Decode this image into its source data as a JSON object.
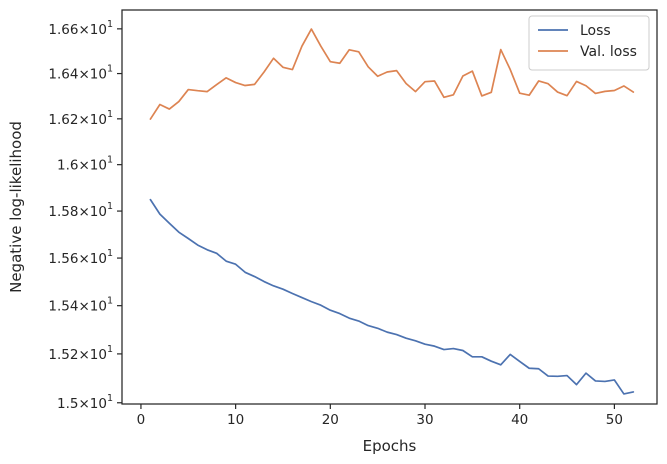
{
  "chart_data": {
    "type": "line",
    "xlabel": "Epochs",
    "ylabel": "Negative log-likelihood",
    "xlim": [
      -2,
      54.5
    ],
    "ylim": [
      14.995,
      16.685
    ],
    "yscale": "log",
    "grid": false,
    "legend_position": "top-right",
    "x_ticks": [
      0,
      10,
      20,
      30,
      40,
      50
    ],
    "y_ticks": [
      {
        "value": 15.0,
        "mantissa": "1.5",
        "base": "10",
        "exponent": "1"
      },
      {
        "value": 15.2,
        "mantissa": "1.52",
        "base": "10",
        "exponent": "1"
      },
      {
        "value": 15.4,
        "mantissa": "1.54",
        "base": "10",
        "exponent": "1"
      },
      {
        "value": 15.6,
        "mantissa": "1.56",
        "base": "10",
        "exponent": "1"
      },
      {
        "value": 15.8,
        "mantissa": "1.58",
        "base": "10",
        "exponent": "1"
      },
      {
        "value": 16.0,
        "mantissa": "1.6",
        "base": "10",
        "exponent": "1"
      },
      {
        "value": 16.2,
        "mantissa": "1.62",
        "base": "10",
        "exponent": "1"
      },
      {
        "value": 16.4,
        "mantissa": "1.64",
        "base": "10",
        "exponent": "1"
      },
      {
        "value": 16.6,
        "mantissa": "1.66",
        "base": "10",
        "exponent": "1"
      }
    ],
    "x": [
      1,
      2,
      3,
      4,
      5,
      6,
      7,
      8,
      9,
      10,
      11,
      12,
      13,
      14,
      15,
      16,
      17,
      18,
      19,
      20,
      21,
      22,
      23,
      24,
      25,
      26,
      27,
      28,
      29,
      30,
      31,
      32,
      33,
      34,
      35,
      36,
      37,
      38,
      39,
      40,
      41,
      42,
      43,
      44,
      45,
      46,
      47,
      48,
      49,
      50,
      51,
      52
    ],
    "series": [
      {
        "name": "Loss",
        "color": "#4c72b0",
        "values": [
          15.849,
          15.787,
          15.748,
          15.71,
          15.683,
          15.655,
          15.635,
          15.62,
          15.587,
          15.574,
          15.54,
          15.522,
          15.501,
          15.483,
          15.469,
          15.451,
          15.434,
          15.417,
          15.402,
          15.381,
          15.367,
          15.348,
          15.336,
          15.317,
          15.306,
          15.29,
          15.28,
          15.265,
          15.254,
          15.24,
          15.232,
          15.218,
          15.222,
          15.214,
          15.188,
          15.188,
          15.17,
          15.155,
          15.198,
          15.169,
          15.141,
          15.139,
          15.109,
          15.108,
          15.111,
          15.074,
          15.121,
          15.089,
          15.087,
          15.093,
          15.036,
          15.044
        ]
      },
      {
        "name": "Val. loss",
        "color": "#dd8452",
        "values": [
          16.199,
          16.263,
          16.243,
          16.276,
          16.329,
          16.324,
          16.32,
          16.351,
          16.381,
          16.36,
          16.347,
          16.352,
          16.407,
          16.468,
          16.428,
          16.418,
          16.522,
          16.599,
          16.522,
          16.453,
          16.446,
          16.506,
          16.497,
          16.43,
          16.388,
          16.407,
          16.413,
          16.356,
          16.32,
          16.364,
          16.367,
          16.295,
          16.306,
          16.389,
          16.411,
          16.301,
          16.317,
          16.507,
          16.418,
          16.313,
          16.304,
          16.367,
          16.355,
          16.318,
          16.302,
          16.365,
          16.346,
          16.312,
          16.321,
          16.325,
          16.345,
          16.318
        ]
      }
    ]
  }
}
